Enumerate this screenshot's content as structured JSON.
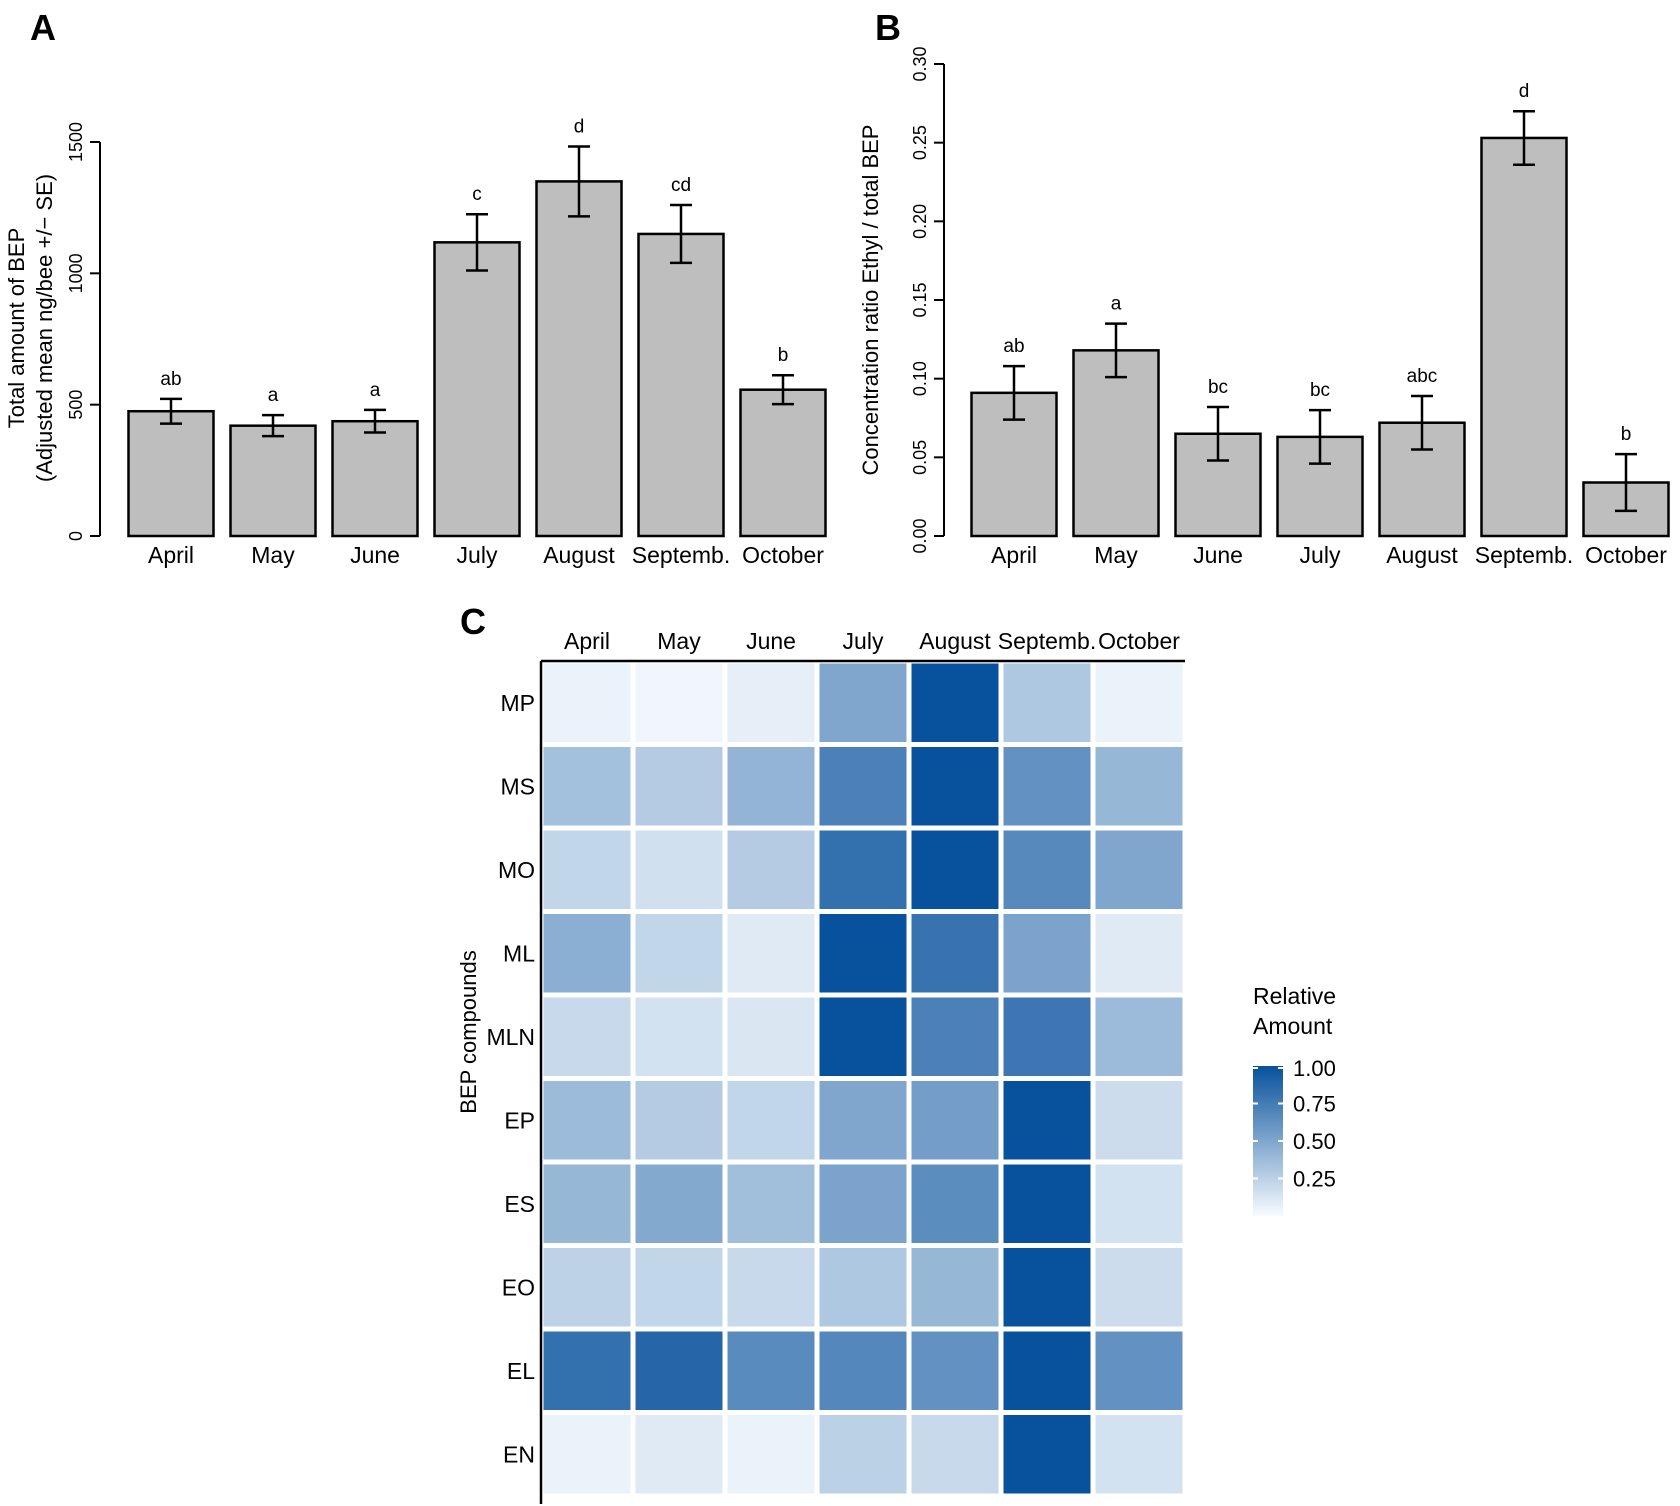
{
  "panels": {
    "a": "A",
    "b": "B",
    "c": "C"
  },
  "chart_data": [
    {
      "type": "bar",
      "panel": "A",
      "ylabel": "Total amount of BEP",
      "ylabel2": "(Adjusted mean ng/bee +/− SE)",
      "categories": [
        "April",
        "May",
        "June",
        "July",
        "August",
        "Septemb.",
        "October"
      ],
      "values": [
        475,
        420,
        437,
        1118,
        1350,
        1150,
        557
      ],
      "errors": [
        47,
        40,
        43,
        107,
        133,
        110,
        55
      ],
      "letters": [
        "ab",
        "a",
        "a",
        "c",
        "d",
        "cd",
        "b"
      ],
      "ylim": [
        0,
        1500
      ],
      "yticks": [
        "0",
        "500",
        "1000",
        "1500"
      ],
      "bar_color": "#bebebe"
    },
    {
      "type": "bar",
      "panel": "B",
      "ylabel": "Concentration ratio Ethyl / total BEP",
      "categories": [
        "April",
        "May",
        "June",
        "July",
        "August",
        "Septemb.",
        "October"
      ],
      "values": [
        0.091,
        0.118,
        0.065,
        0.063,
        0.072,
        0.253,
        0.034
      ],
      "errors": [
        0.017,
        0.017,
        0.017,
        0.017,
        0.017,
        0.017,
        0.018
      ],
      "letters": [
        "ab",
        "a",
        "bc",
        "bc",
        "abc",
        "d",
        "b"
      ],
      "ylim": [
        0,
        0.3
      ],
      "yticks": [
        "0.00",
        "0.05",
        "0.10",
        "0.15",
        "0.20",
        "0.25",
        "0.30"
      ],
      "bar_color": "#bebebe"
    },
    {
      "type": "heatmap",
      "panel": "C",
      "ylabel": "BEP compounds",
      "columns": [
        "April",
        "May",
        "June",
        "July",
        "August",
        "Septemb.",
        "October"
      ],
      "rows": [
        "MP",
        "MS",
        "MO",
        "ML",
        "MLN",
        "EP",
        "ES",
        "EO",
        "EL",
        "EN"
      ],
      "values": [
        [
          0.05,
          0.03,
          0.07,
          0.5,
          1.0,
          0.3,
          0.05
        ],
        [
          0.35,
          0.28,
          0.42,
          0.72,
          1.0,
          0.62,
          0.4
        ],
        [
          0.22,
          0.16,
          0.28,
          0.82,
          1.0,
          0.67,
          0.5
        ],
        [
          0.45,
          0.22,
          0.1,
          1.0,
          0.8,
          0.52,
          0.1
        ],
        [
          0.2,
          0.15,
          0.12,
          1.0,
          0.72,
          0.78,
          0.38
        ],
        [
          0.38,
          0.28,
          0.22,
          0.5,
          0.55,
          1.0,
          0.18
        ],
        [
          0.4,
          0.48,
          0.36,
          0.52,
          0.65,
          1.0,
          0.15
        ],
        [
          0.24,
          0.22,
          0.2,
          0.3,
          0.4,
          1.0,
          0.18
        ],
        [
          0.82,
          0.88,
          0.66,
          0.68,
          0.62,
          1.0,
          0.62
        ],
        [
          0.05,
          0.1,
          0.05,
          0.25,
          0.2,
          1.0,
          0.15
        ]
      ],
      "color_low": "#f7fbff",
      "color_high": "#08519c",
      "legend_title_line1": "Relative",
      "legend_title_line2": "Amount",
      "legend_ticks": [
        1.0,
        0.75,
        0.5,
        0.25
      ],
      "legend_tick_labels": [
        "1.00",
        "0.75",
        "0.50",
        "0.25"
      ]
    }
  ]
}
